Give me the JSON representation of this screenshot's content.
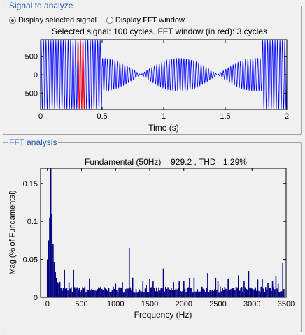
{
  "signal_panel": {
    "title": "Signal to analyze",
    "radio_selected_label": "Display selected signal",
    "radio_fft_prefix": "Display ",
    "radio_fft_bold": "FFT",
    "radio_fft_suffix": " window",
    "plot_title": "Selected signal: 100 cycles. FFT window (in red): 3 cycles",
    "xlabel": "Time (s)"
  },
  "fft_panel": {
    "title": "FFT analysis",
    "plot_title": "Fundamental (50Hz) = 929.2 , THD= 1.29%",
    "xlabel": "Frequency (Hz)",
    "ylabel": "Mag (% of Fundamental)"
  },
  "colors": {
    "signal": "#0000ff",
    "window": "#ff0000",
    "bars": "#000080",
    "group_title": "#1e5aa8"
  },
  "chart_data": [
    {
      "type": "line",
      "title": "Selected signal: 100 cycles. FFT window (in red): 3 cycles",
      "xlabel": "Time (s)",
      "ylabel": "",
      "xlim": [
        0,
        2
      ],
      "ylim": [
        -950,
        950
      ],
      "xticks": [
        0,
        0.5,
        1,
        1.5,
        2
      ],
      "xtick_labels": [
        "0",
        "0.5",
        "1",
        "1.5",
        "2"
      ],
      "yticks": [
        500,
        0,
        -500
      ],
      "ytick_labels": [
        "500",
        "0",
        "-500"
      ],
      "fundamental_hz": 50,
      "segments": [
        {
          "t0": 0.0,
          "t1": 0.5,
          "amplitude": 930
        },
        {
          "t0": 0.5,
          "t1": 1.8,
          "amplitude": 450,
          "beat_hz": 1.6
        },
        {
          "t0": 1.8,
          "t1": 2.0,
          "amplitude": 930
        }
      ],
      "fft_window": {
        "t0": 0.3,
        "t1": 0.36
      }
    },
    {
      "type": "bar",
      "title": "Fundamental (50Hz) = 929.2 , THD= 1.29%",
      "xlabel": "Frequency (Hz)",
      "ylabel": "Mag (% of Fundamental)",
      "xlim": [
        -100,
        3500
      ],
      "ylim": [
        0,
        0.17
      ],
      "xticks": [
        0,
        500,
        1000,
        1500,
        2000,
        2500,
        3000,
        3500
      ],
      "xtick_labels": [
        "0",
        "500",
        "1000",
        "1500",
        "2000",
        "2500",
        "3000",
        "3500"
      ],
      "yticks": [
        0,
        0.05,
        0.1,
        0.15
      ],
      "ytick_labels": [
        "0",
        "0.05",
        "0.1",
        "0.15"
      ],
      "peaks": [
        {
          "f": 0,
          "v": 0.05
        },
        {
          "f": 17,
          "v": 0.075
        },
        {
          "f": 33,
          "v": 0.105
        },
        {
          "f": 50,
          "v": 0.17
        },
        {
          "f": 67,
          "v": 0.11
        },
        {
          "f": 83,
          "v": 0.07
        },
        {
          "f": 100,
          "v": 0.046
        },
        {
          "f": 117,
          "v": 0.033
        },
        {
          "f": 133,
          "v": 0.025
        },
        {
          "f": 150,
          "v": 0.02
        },
        {
          "f": 250,
          "v": 0.036
        },
        {
          "f": 380,
          "v": 0.036
        },
        {
          "f": 550,
          "v": 0.014
        },
        {
          "f": 780,
          "v": 0.014
        },
        {
          "f": 1000,
          "v": 0.018
        },
        {
          "f": 1100,
          "v": 0.02
        },
        {
          "f": 1200,
          "v": 0.065
        },
        {
          "f": 1250,
          "v": 0.026
        },
        {
          "f": 1400,
          "v": 0.022
        },
        {
          "f": 1550,
          "v": 0.021
        },
        {
          "f": 1700,
          "v": 0.038
        },
        {
          "f": 1850,
          "v": 0.02
        },
        {
          "f": 2000,
          "v": 0.022
        },
        {
          "f": 2150,
          "v": 0.026
        },
        {
          "f": 2350,
          "v": 0.032
        },
        {
          "f": 2500,
          "v": 0.022
        },
        {
          "f": 2650,
          "v": 0.024
        },
        {
          "f": 2800,
          "v": 0.029
        },
        {
          "f": 2950,
          "v": 0.034
        },
        {
          "f": 3150,
          "v": 0.024
        },
        {
          "f": 3300,
          "v": 0.022
        },
        {
          "f": 3350,
          "v": 0.028
        },
        {
          "f": 3450,
          "v": 0.045
        }
      ]
    }
  ]
}
